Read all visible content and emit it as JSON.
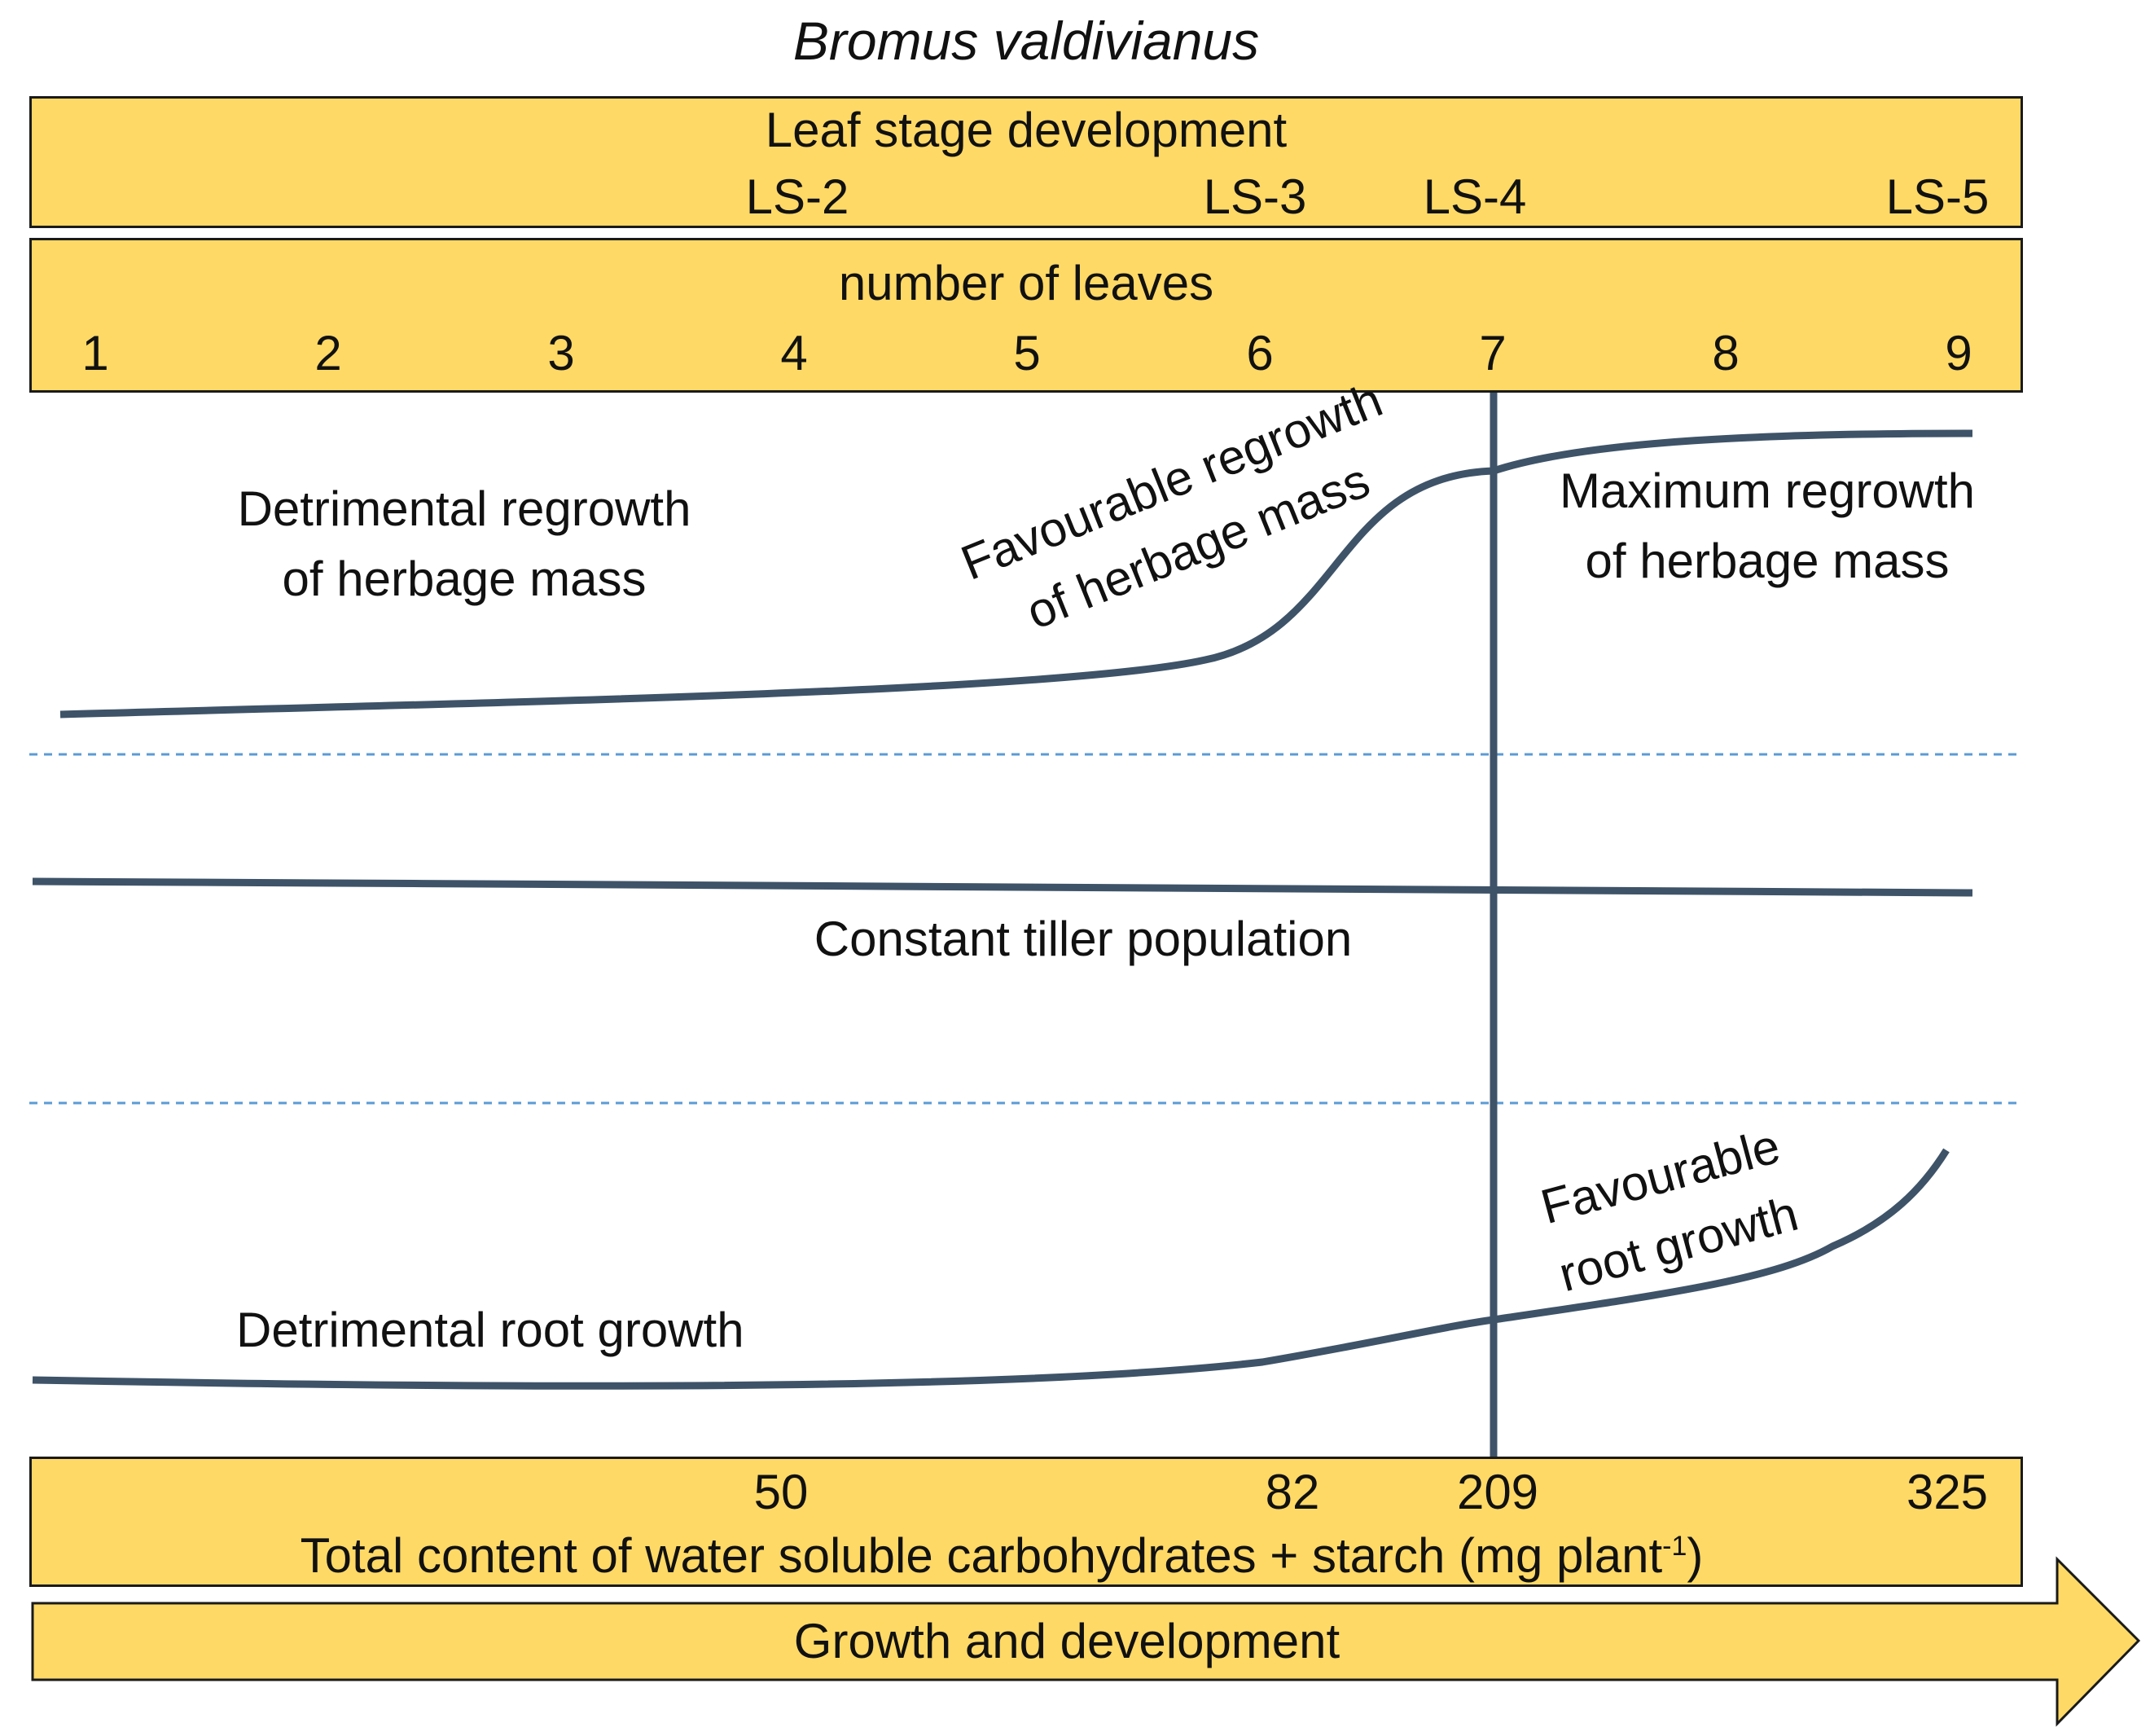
{
  "title": "Bromus valdivianus",
  "leaf_stage": {
    "label": "Leaf stage development",
    "stages": [
      "LS-2",
      "LS-3",
      "LS-4",
      "LS-5"
    ]
  },
  "leaves": {
    "label": "number of leaves",
    "numbers": [
      "1",
      "2",
      "3",
      "4",
      "5",
      "6",
      "7",
      "8",
      "9"
    ]
  },
  "herbage": {
    "detrimental": [
      "Detrimental regrowth",
      "of herbage mass"
    ],
    "favourable": [
      "Favourable regrowth",
      "of herbage mass"
    ],
    "maximum": [
      "Maximum regrowth",
      "of herbage mass"
    ]
  },
  "tiller": {
    "label": "Constant tiller population"
  },
  "root": {
    "detrimental": "Detrimental root growth",
    "favourable": [
      "Favourable",
      "root growth"
    ]
  },
  "carbohydrates": {
    "values": [
      "50",
      "82",
      "209",
      "325"
    ],
    "label_main": "Total content of water soluble carbohydrates + starch (mg plant",
    "label_sup": "-1",
    "label_end": ")"
  },
  "arrow": {
    "label": "Growth and development"
  },
  "colors": {
    "band_fill": "#FFD966",
    "curve": "#3E5368",
    "divider": "#5B9BD5"
  }
}
